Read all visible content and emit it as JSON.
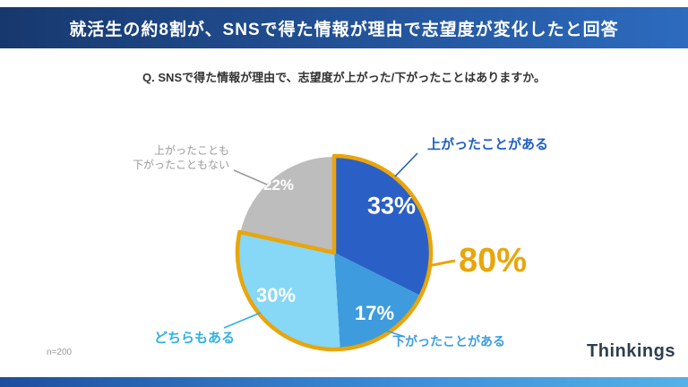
{
  "header": {
    "title": "就活生の約8割が、SNSで得た情報が理由で志望度が変化したと回答"
  },
  "question": "Q. SNSで得た情報が理由で、志望度が上がった/下がったことはありますか。",
  "chart_data": {
    "type": "pie",
    "start_angle_deg": -90,
    "direction": "clockwise",
    "slices": [
      {
        "label": "上がったことがある",
        "value": 33,
        "display": "33%",
        "color": "#2a60c6",
        "text_color": "#1e5ec4"
      },
      {
        "label": "下がったことがある",
        "value": 17,
        "display": "17%",
        "color": "#3e9bde",
        "text_color": "#3d9de4"
      },
      {
        "label": "どちらもある",
        "value": 30,
        "display": "30%",
        "color": "#87d7f7",
        "text_color": "#2fb1e6"
      },
      {
        "label": "上がったことも\n下がったこともない",
        "value": 22,
        "display": "22%",
        "color": "#bdbdbd",
        "text_color": "#9b9b9b"
      }
    ],
    "highlight": {
      "label": "80%",
      "slice_count": 3,
      "color": "#e9a50a"
    },
    "legend_position": "around",
    "grid": false
  },
  "footer": {
    "sample_size": "n=200",
    "logo": "Thinkings"
  }
}
